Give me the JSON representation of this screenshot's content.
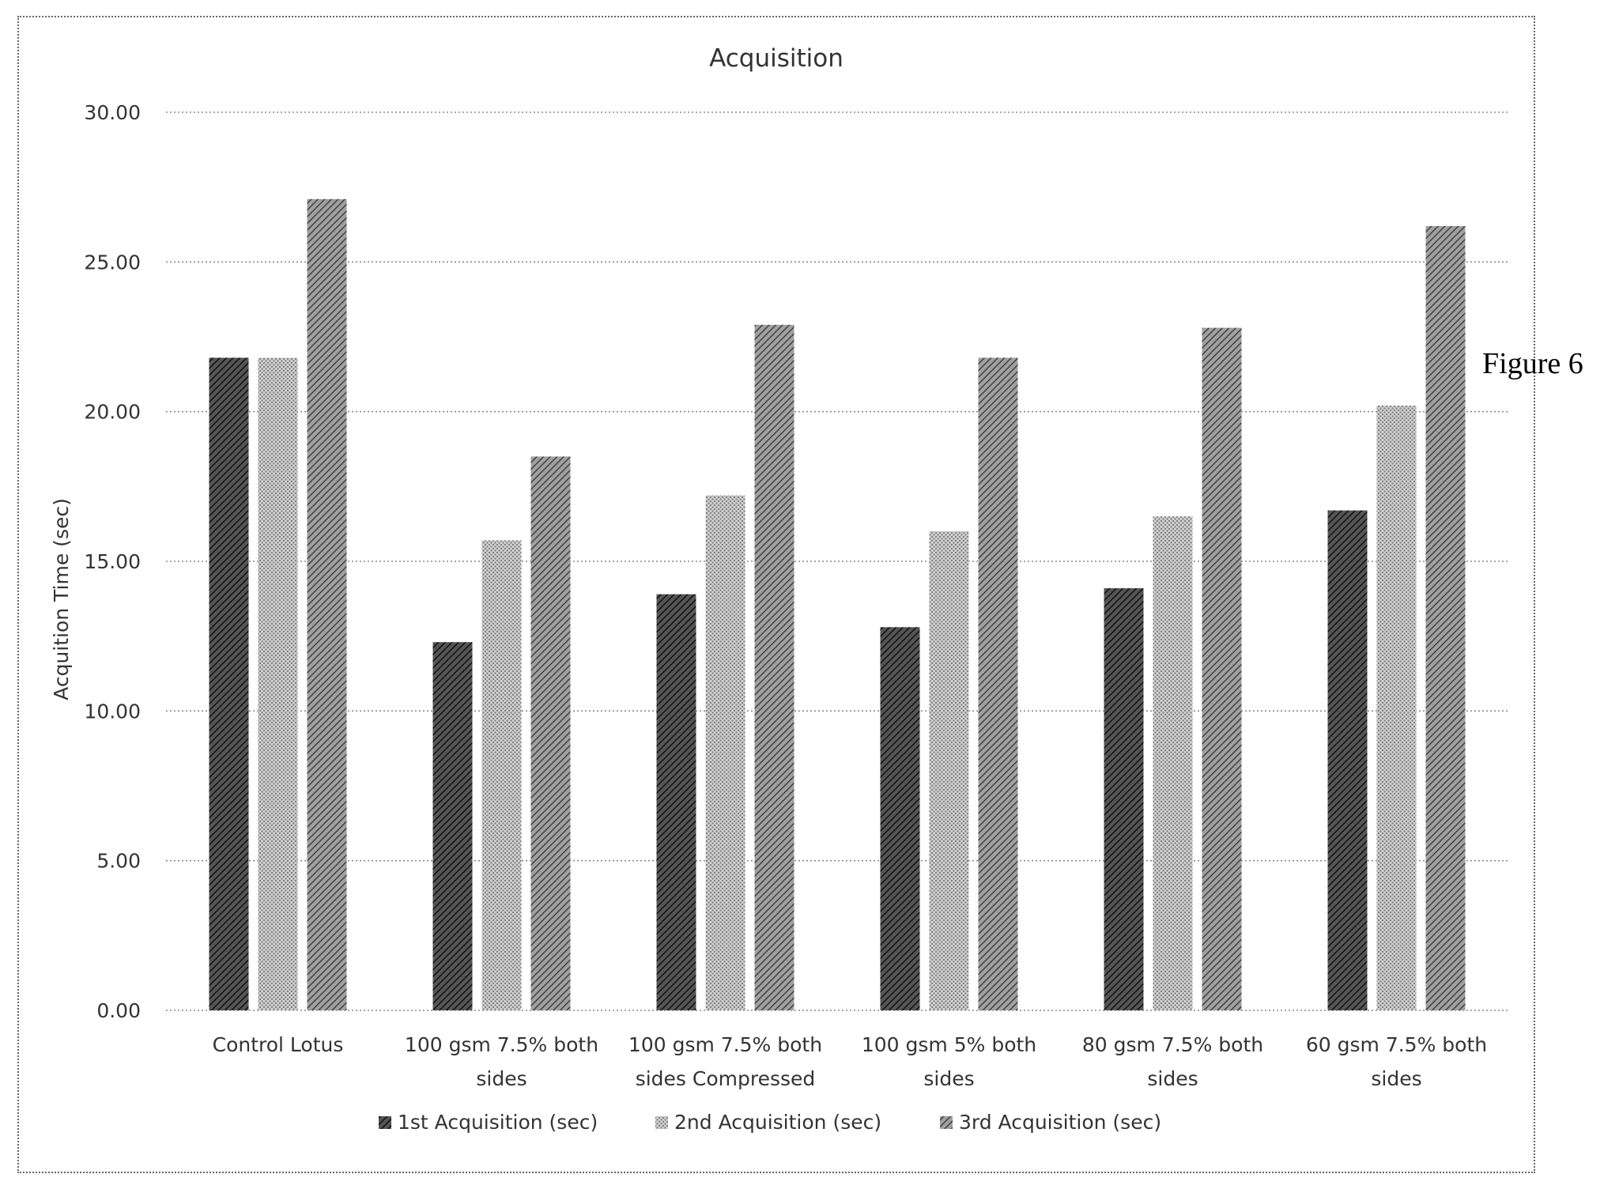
{
  "figure_label": "Figure 6",
  "chart_data": {
    "type": "bar",
    "title": "Acquisition",
    "xlabel": "",
    "ylabel": "Acquition Time (sec)",
    "ylim": [
      0,
      30
    ],
    "yticks": [
      "0.00",
      "5.00",
      "10.00",
      "15.00",
      "20.00",
      "25.00",
      "30.00"
    ],
    "grid": true,
    "legend_position": "bottom",
    "categories": [
      [
        "Control Lotus"
      ],
      [
        "100 gsm 7.5% both",
        "sides"
      ],
      [
        "100 gsm 7.5% both",
        "sides Compressed"
      ],
      [
        "100 gsm 5% both",
        "sides"
      ],
      [
        "80 gsm 7.5% both",
        "sides"
      ],
      [
        "60 gsm 7.5% both",
        "sides"
      ]
    ],
    "series": [
      {
        "name": "1st Acquisition (sec)",
        "values": [
          21.8,
          12.3,
          13.9,
          12.8,
          14.1,
          16.7
        ],
        "color": "#3a3a3a",
        "pattern": "dark-diagonal"
      },
      {
        "name": "2nd Acquisition (sec)",
        "values": [
          21.8,
          15.7,
          17.2,
          16.0,
          16.5,
          20.2
        ],
        "color": "#9a9a9a",
        "pattern": "light-dots"
      },
      {
        "name": "3rd Acquisition (sec)",
        "values": [
          27.1,
          18.5,
          22.9,
          21.8,
          22.8,
          26.2
        ],
        "color": "#6a6a6a",
        "pattern": "medium-diagonal"
      }
    ]
  }
}
